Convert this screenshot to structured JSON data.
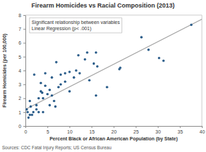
{
  "chart_data": {
    "type": "scatter",
    "title": "Firearm Homicides vs Racial Composition (2013)",
    "x_label": "Percent Black or African American Population (by State)",
    "y_label": "Firearm Homicides (per 100,000)",
    "annotations": [
      "Significant relationship between variables",
      "Linear Regression (p< .001)"
    ],
    "source": "Sources: CDC Fatal Injury Reports; US Census Bureau",
    "x": [
      37.6,
      26.3,
      27.9,
      30.3,
      31.3,
      21.3,
      21.5,
      18.5,
      16,
      15.5,
      16.3,
      16,
      14.5,
      14,
      13.5,
      12,
      11.5,
      11,
      12.3,
      10,
      9,
      8,
      7.5,
      7,
      6.5,
      6.8,
      6,
      0.5,
      0.7,
      1,
      1.2,
      1.5,
      1.8,
      1,
      2,
      2.5,
      3,
      3.5,
      3.5,
      4,
      4,
      4.5,
      4.5,
      5,
      5.5,
      6,
      5.5,
      8,
      9,
      10,
      0.3,
      2.5,
      3,
      3.8
    ],
    "values": [
      7.3,
      6.4,
      5.5,
      4.9,
      4.7,
      4.1,
      4.2,
      2.8,
      5.3,
      4.5,
      4.3,
      2.2,
      3.3,
      5.3,
      4.8,
      5.1,
      4.0,
      3.5,
      3.8,
      2.5,
      3.8,
      3.0,
      2.8,
      4.6,
      1.8,
      1.4,
      2.2,
      1.0,
      0.6,
      0.8,
      1.4,
      0.8,
      1.0,
      1.8,
      3.7,
      1.2,
      1.0,
      2.5,
      3.1,
      2.0,
      1.0,
      3.8,
      2.9,
      2.3,
      2.6,
      3.5,
      1.5,
      3.7,
      3.2,
      3.9,
      1.2,
      1.5,
      2.0,
      2.4
    ],
    "color": "#2b5d8a",
    "trend_line": {
      "x": [
        0,
        40
      ],
      "values": [
        1.2,
        7.7
      ],
      "color": "#a6a6a6"
    },
    "xlim": [
      0,
      40
    ],
    "xticks": [
      0,
      5,
      10,
      15,
      20,
      25,
      30,
      35,
      40
    ],
    "ylim": [
      0,
      8
    ],
    "yticks": [
      0,
      1,
      2,
      3,
      4,
      5,
      6,
      7,
      8
    ],
    "grid": false
  }
}
